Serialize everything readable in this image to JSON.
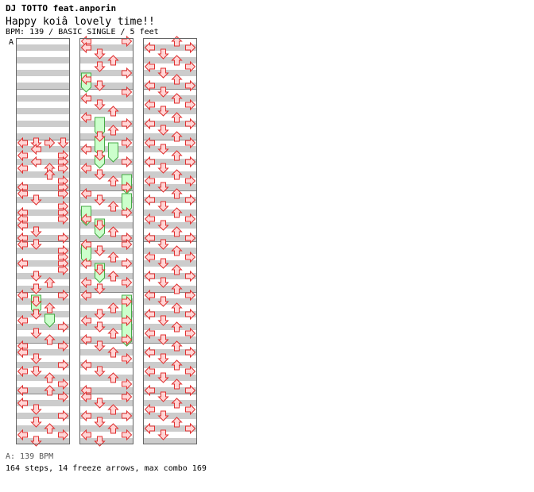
{
  "header": {
    "artist": "DJ TOTTO feat.anporin",
    "title": "Happy koiâ  lovely time!!",
    "info": "BPM: 139 / BASIC SINGLE / 5 feet",
    "bpm_marker": "A"
  },
  "footer": {
    "bpm_line": "A: 139 BPM",
    "stats": "164 steps, 14 freeze arrows, max combo 169"
  },
  "colors": {
    "stripe": "#cccccc",
    "arrow_fill": "#ffd6d6",
    "arrow_stroke": "#e03030",
    "freeze_fill": "#ccffcc",
    "freeze_stroke": "#44aa44",
    "bpm_marker_line": "#6688ff"
  },
  "chart_data": {
    "type": "step-chart",
    "lanes": [
      "left",
      "down",
      "up",
      "right"
    ],
    "measures_per_column": 8,
    "rows_per_measure": 8,
    "arrows": [
      [
        0,
        16,
        "L"
      ],
      [
        1,
        16,
        "D"
      ],
      [
        2,
        16,
        "R"
      ],
      [
        3,
        16,
        "D"
      ],
      [
        1,
        17,
        "L"
      ],
      [
        0,
        18,
        "L"
      ],
      [
        3,
        18,
        "R"
      ],
      [
        1,
        19,
        "L"
      ],
      [
        3,
        19,
        "R"
      ],
      [
        0,
        20,
        "L"
      ],
      [
        2,
        20,
        "U"
      ],
      [
        3,
        20,
        "R"
      ],
      [
        2,
        21,
        "U"
      ],
      [
        3,
        22,
        "R"
      ],
      [
        0,
        23,
        "L"
      ],
      [
        3,
        23,
        "R"
      ],
      [
        0,
        24,
        "L"
      ],
      [
        3,
        24,
        "R"
      ],
      [
        1,
        25,
        "D"
      ],
      [
        3,
        26,
        "R"
      ],
      [
        0,
        27,
        "L"
      ],
      [
        3,
        27,
        "R"
      ],
      [
        0,
        28,
        "L"
      ],
      [
        3,
        28,
        "R"
      ],
      [
        0,
        29,
        "L"
      ],
      [
        1,
        30,
        "D"
      ],
      [
        0,
        31,
        "L"
      ],
      [
        3,
        31,
        "R"
      ],
      [
        0,
        32,
        "L"
      ],
      [
        1,
        32,
        "D"
      ],
      [
        3,
        33,
        "R"
      ],
      [
        3,
        34,
        "R"
      ],
      [
        0,
        35,
        "L"
      ],
      [
        3,
        35,
        "R"
      ],
      [
        3,
        36,
        "R"
      ],
      [
        1,
        37,
        "D"
      ],
      [
        2,
        38,
        "U"
      ],
      [
        1,
        39,
        "D"
      ],
      [
        0,
        40,
        "L"
      ],
      [
        3,
        40,
        "R"
      ],
      [
        1,
        41,
        "D"
      ],
      [
        2,
        42,
        "U"
      ],
      [
        1,
        43,
        "D"
      ],
      [
        0,
        44,
        "L"
      ],
      [
        3,
        45,
        "R"
      ],
      [
        1,
        46,
        "D"
      ],
      [
        2,
        47,
        "U"
      ],
      [
        0,
        48,
        "L"
      ],
      [
        3,
        48,
        "R"
      ],
      [
        0,
        49,
        "L"
      ],
      [
        1,
        50,
        "D"
      ],
      [
        3,
        51,
        "R"
      ],
      [
        0,
        52,
        "L"
      ],
      [
        1,
        52,
        "D"
      ],
      [
        2,
        53,
        "U"
      ],
      [
        3,
        54,
        "R"
      ],
      [
        0,
        55,
        "L"
      ],
      [
        2,
        55,
        "U"
      ],
      [
        3,
        56,
        "R"
      ],
      [
        0,
        57,
        "L"
      ],
      [
        1,
        58,
        "D"
      ],
      [
        3,
        59,
        "R"
      ],
      [
        1,
        60,
        "D"
      ],
      [
        2,
        61,
        "U"
      ],
      [
        0,
        62,
        "L"
      ],
      [
        3,
        62,
        "R"
      ],
      [
        1,
        63,
        "D"
      ],
      [
        0,
        64,
        "L"
      ],
      [
        3,
        64,
        "R"
      ],
      [
        0,
        65,
        "L"
      ],
      [
        1,
        66,
        "D"
      ],
      [
        2,
        67,
        "U"
      ],
      [
        1,
        68,
        "D"
      ],
      [
        3,
        69,
        "R"
      ],
      [
        0,
        70,
        "L"
      ],
      [
        1,
        71,
        "D"
      ],
      [
        3,
        72,
        "R"
      ],
      [
        0,
        73,
        "L"
      ],
      [
        1,
        74,
        "D"
      ],
      [
        2,
        75,
        "U"
      ],
      [
        0,
        76,
        "L"
      ],
      [
        3,
        77,
        "R"
      ],
      [
        2,
        78,
        "U"
      ],
      [
        1,
        79,
        "D"
      ],
      [
        3,
        80,
        "R"
      ],
      [
        0,
        81,
        "L"
      ],
      [
        1,
        82,
        "D"
      ],
      [
        3,
        83,
        "R"
      ],
      [
        0,
        84,
        "L"
      ],
      [
        1,
        85,
        "D"
      ],
      [
        2,
        86,
        "U"
      ],
      [
        3,
        87,
        "R"
      ],
      [
        0,
        88,
        "L"
      ],
      [
        1,
        89,
        "D"
      ],
      [
        2,
        90,
        "U"
      ],
      [
        3,
        91,
        "R"
      ],
      [
        0,
        92,
        "L"
      ],
      [
        1,
        93,
        "D"
      ],
      [
        2,
        94,
        "U"
      ],
      [
        3,
        95,
        "R"
      ],
      [
        0,
        96,
        "L"
      ],
      [
        3,
        96,
        "R"
      ],
      [
        1,
        97,
        "D"
      ],
      [
        2,
        98,
        "U"
      ],
      [
        0,
        99,
        "L"
      ],
      [
        3,
        99,
        "R"
      ],
      [
        1,
        100,
        "D"
      ],
      [
        2,
        101,
        "U"
      ],
      [
        0,
        102,
        "L"
      ],
      [
        3,
        102,
        "R"
      ],
      [
        1,
        103,
        "D"
      ],
      [
        0,
        104,
        "L"
      ],
      [
        3,
        105,
        "R"
      ],
      [
        2,
        106,
        "U"
      ],
      [
        1,
        107,
        "D"
      ],
      [
        0,
        108,
        "L"
      ],
      [
        3,
        108,
        "R"
      ],
      [
        1,
        109,
        "D"
      ],
      [
        2,
        110,
        "U"
      ],
      [
        0,
        111,
        "L"
      ],
      [
        3,
        111,
        "R"
      ],
      [
        1,
        112,
        "D"
      ],
      [
        2,
        113,
        "U"
      ],
      [
        3,
        114,
        "R"
      ],
      [
        0,
        115,
        "L"
      ],
      [
        1,
        116,
        "D"
      ],
      [
        2,
        117,
        "U"
      ],
      [
        3,
        118,
        "R"
      ],
      [
        0,
        119,
        "L"
      ],
      [
        0,
        120,
        "L"
      ],
      [
        3,
        120,
        "R"
      ],
      [
        1,
        121,
        "D"
      ],
      [
        2,
        122,
        "U"
      ],
      [
        0,
        123,
        "L"
      ],
      [
        3,
        123,
        "R"
      ],
      [
        1,
        124,
        "D"
      ],
      [
        2,
        125,
        "U"
      ],
      [
        0,
        126,
        "L"
      ],
      [
        3,
        126,
        "R"
      ],
      [
        1,
        127,
        "D"
      ],
      [
        2,
        128,
        "U"
      ],
      [
        0,
        129,
        "L"
      ],
      [
        3,
        129,
        "R"
      ],
      [
        1,
        130,
        "D"
      ],
      [
        2,
        131,
        "U"
      ],
      [
        0,
        132,
        "L"
      ],
      [
        3,
        132,
        "R"
      ],
      [
        1,
        133,
        "D"
      ],
      [
        2,
        134,
        "U"
      ],
      [
        0,
        135,
        "L"
      ],
      [
        3,
        135,
        "R"
      ],
      [
        1,
        136,
        "D"
      ],
      [
        2,
        137,
        "U"
      ],
      [
        0,
        138,
        "L"
      ],
      [
        3,
        138,
        "R"
      ],
      [
        1,
        139,
        "D"
      ],
      [
        2,
        140,
        "U"
      ],
      [
        0,
        141,
        "L"
      ],
      [
        3,
        141,
        "R"
      ],
      [
        1,
        142,
        "D"
      ],
      [
        2,
        143,
        "U"
      ],
      [
        0,
        144,
        "L"
      ],
      [
        3,
        144,
        "R"
      ],
      [
        1,
        145,
        "D"
      ],
      [
        2,
        146,
        "U"
      ],
      [
        0,
        147,
        "L"
      ],
      [
        3,
        147,
        "R"
      ],
      [
        1,
        148,
        "D"
      ],
      [
        2,
        149,
        "U"
      ],
      [
        0,
        150,
        "L"
      ],
      [
        3,
        150,
        "R"
      ],
      [
        1,
        151,
        "D"
      ],
      [
        2,
        152,
        "U"
      ],
      [
        0,
        153,
        "L"
      ],
      [
        3,
        153,
        "R"
      ],
      [
        1,
        154,
        "D"
      ],
      [
        2,
        155,
        "U"
      ],
      [
        0,
        156,
        "L"
      ],
      [
        3,
        156,
        "R"
      ],
      [
        1,
        157,
        "D"
      ],
      [
        2,
        158,
        "U"
      ],
      [
        0,
        159,
        "L"
      ],
      [
        3,
        159,
        "R"
      ],
      [
        1,
        160,
        "D"
      ],
      [
        2,
        161,
        "U"
      ],
      [
        0,
        162,
        "L"
      ],
      [
        3,
        162,
        "R"
      ],
      [
        1,
        163,
        "D"
      ],
      [
        2,
        164,
        "U"
      ],
      [
        0,
        165,
        "L"
      ],
      [
        3,
        165,
        "R"
      ],
      [
        1,
        166,
        "D"
      ],
      [
        2,
        167,
        "U"
      ],
      [
        0,
        168,
        "L"
      ],
      [
        3,
        168,
        "R"
      ],
      [
        1,
        169,
        "D"
      ],
      [
        2,
        170,
        "U"
      ],
      [
        0,
        171,
        "L"
      ],
      [
        3,
        171,
        "R"
      ],
      [
        1,
        172,
        "D"
      ],
      [
        2,
        173,
        "U"
      ],
      [
        0,
        174,
        "L"
      ],
      [
        3,
        174,
        "R"
      ],
      [
        1,
        175,
        "D"
      ],
      [
        2,
        176,
        "U"
      ],
      [
        0,
        177,
        "L"
      ],
      [
        3,
        177,
        "R"
      ],
      [
        1,
        178,
        "D"
      ],
      [
        2,
        179,
        "U"
      ],
      [
        0,
        180,
        "L"
      ],
      [
        3,
        180,
        "R"
      ],
      [
        1,
        181,
        "D"
      ],
      [
        2,
        182,
        "U"
      ],
      [
        0,
        183,
        "L"
      ],
      [
        3,
        183,
        "R"
      ],
      [
        1,
        184,
        "D"
      ],
      [
        2,
        185,
        "U"
      ],
      [
        0,
        186,
        "L"
      ],
      [
        3,
        186,
        "R"
      ],
      [
        1,
        187,
        "D"
      ],
      [
        2,
        188,
        "U"
      ],
      [
        0,
        189,
        "L"
      ],
      [
        3,
        189,
        "R"
      ],
      [
        1,
        190,
        "D"
      ]
    ],
    "freezes": [
      [
        1,
        40,
        43
      ],
      [
        2,
        43,
        45
      ],
      [
        0,
        69,
        72
      ],
      [
        1,
        76,
        79
      ],
      [
        1,
        79,
        82
      ],
      [
        2,
        80,
        83
      ],
      [
        1,
        82,
        84
      ],
      [
        3,
        85,
        88
      ],
      [
        3,
        88,
        91
      ],
      [
        0,
        90,
        93
      ],
      [
        1,
        92,
        95
      ],
      [
        0,
        96,
        99
      ],
      [
        1,
        99,
        102
      ],
      [
        3,
        104,
        112
      ]
    ]
  }
}
